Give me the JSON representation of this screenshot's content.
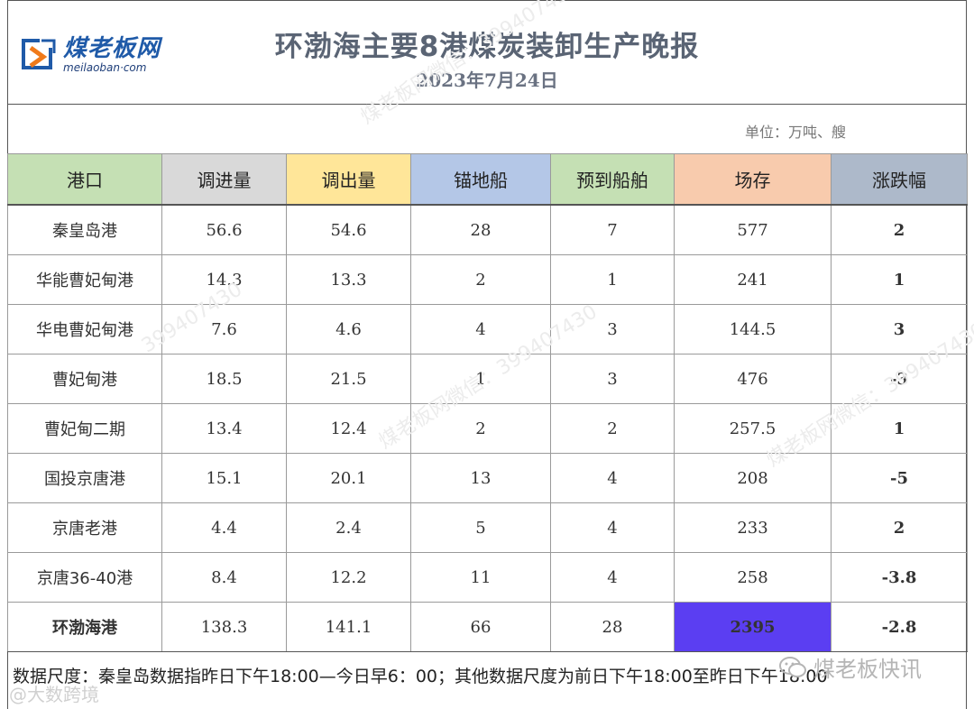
{
  "report": {
    "title": "环渤海主要8港煤炭装卸生产晚报",
    "date": "2023年7月24日",
    "unit": "单位：万吨、艘"
  },
  "logo": {
    "name_cn": "煤老板网",
    "name_en": "meilaoban·com"
  },
  "table": {
    "headers": [
      "港口",
      "调进量",
      "调出量",
      "锚地船",
      "预到船舶",
      "场存",
      "涨跌幅"
    ],
    "header_colors": [
      "#c5e0b4",
      "#d9d9d9",
      "#ffe699",
      "#b4c7e7",
      "#c5e0b4",
      "#f8cbad",
      "#adb9ca"
    ],
    "rows": [
      {
        "port": "秦皇岛港",
        "inbound": "56.6",
        "outbound": "54.6",
        "anchored": "28",
        "expected": "7",
        "stock": "577",
        "change": "2",
        "direction": "up"
      },
      {
        "port": "华能曹妃甸港",
        "inbound": "14.3",
        "outbound": "13.3",
        "anchored": "2",
        "expected": "1",
        "stock": "241",
        "change": "1",
        "direction": "up"
      },
      {
        "port": "华电曹妃甸港",
        "inbound": "7.6",
        "outbound": "4.6",
        "anchored": "4",
        "expected": "3",
        "stock": "144.5",
        "change": "3",
        "direction": "up"
      },
      {
        "port": "曹妃甸港",
        "inbound": "18.5",
        "outbound": "21.5",
        "anchored": "1",
        "expected": "3",
        "stock": "476",
        "change": "-3",
        "direction": "down"
      },
      {
        "port": "曹妃甸二期",
        "inbound": "13.4",
        "outbound": "12.4",
        "anchored": "2",
        "expected": "2",
        "stock": "257.5",
        "change": "1",
        "direction": "up"
      },
      {
        "port": "国投京唐港",
        "inbound": "15.1",
        "outbound": "20.1",
        "anchored": "13",
        "expected": "4",
        "stock": "208",
        "change": "-5",
        "direction": "down"
      },
      {
        "port": "京唐老港",
        "inbound": "4.4",
        "outbound": "2.4",
        "anchored": "5",
        "expected": "4",
        "stock": "233",
        "change": "2",
        "direction": "up"
      },
      {
        "port": "京唐36-40港",
        "inbound": "8.4",
        "outbound": "12.2",
        "anchored": "11",
        "expected": "4",
        "stock": "258",
        "change": "-3.8",
        "direction": "down"
      }
    ],
    "total": {
      "port": "环渤海港",
      "inbound": "138.3",
      "outbound": "141.1",
      "anchored": "66",
      "expected": "28",
      "stock": "2395",
      "change": "-2.8",
      "direction": "down"
    }
  },
  "footnote": "数据尺度：秦皇岛数据指昨日下午18:00—今日早6：00；其他数据尺度为前日下午18:00至昨日下午18:00",
  "watermarks": {
    "wechat_account": "煤老板快讯",
    "bottom_left": "@大数跨境",
    "diagonal": [
      "煤老板网微信：399407430",
      "煤老板网微信：399407430",
      "煤老板网微信：399407430",
      "399407430"
    ]
  },
  "colors": {
    "up": "#e0141e",
    "down": "#1a9a47",
    "total_stock_bg": "#5b3ef2"
  }
}
